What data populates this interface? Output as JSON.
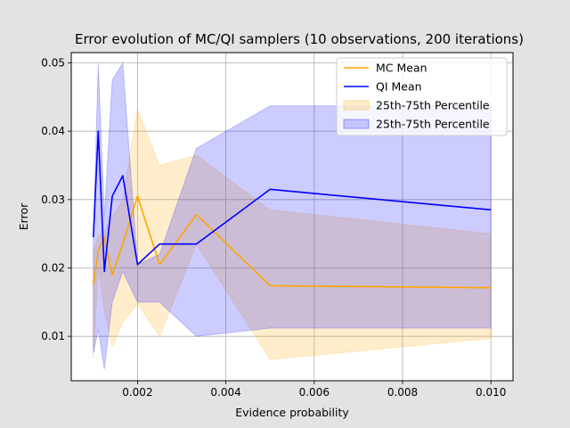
{
  "chart_data": {
    "type": "line",
    "title": "Error evolution of MC/QI samplers (10 observations, 200 iterations)",
    "xlabel": "Evidence probability",
    "ylabel": "Error",
    "xlim": [
      0.0005,
      0.0105
    ],
    "ylim": [
      0.0035,
      0.0515
    ],
    "xticks": [
      0.002,
      0.004,
      0.006,
      0.008,
      0.01
    ],
    "xtick_labels": [
      "0.002",
      "0.004",
      "0.006",
      "0.008",
      "0.010"
    ],
    "yticks": [
      0.01,
      0.02,
      0.03,
      0.04,
      0.05
    ],
    "ytick_labels": [
      "0.01",
      "0.02",
      "0.03",
      "0.04",
      "0.05"
    ],
    "grid": true,
    "legend_position": "top-right",
    "x": [
      0.001,
      0.0011111,
      0.00125,
      0.0014286,
      0.0016667,
      0.002,
      0.0025,
      0.0033333,
      0.005,
      0.01
    ],
    "series": [
      {
        "name": "MC Mean",
        "color": "#ffa500",
        "values": [
          0.0175,
          0.0225,
          0.0245,
          0.019,
          0.0235,
          0.0305,
          0.0205,
          0.0278,
          0.0174,
          0.0171
        ]
      },
      {
        "name": "QI Mean",
        "color": "#0000ff",
        "values": [
          0.0245,
          0.04,
          0.0195,
          0.0305,
          0.0335,
          0.0205,
          0.0235,
          0.0235,
          0.0315,
          0.0285
        ]
      }
    ],
    "bands": [
      {
        "name": "25th-75th Percentile",
        "color": "#ffa500",
        "opacity": 0.2,
        "lower": [
          0.0068,
          0.02,
          0.0138,
          0.0085,
          0.012,
          0.0148,
          0.01,
          0.0235,
          0.0066,
          0.0097
        ],
        "upper": [
          0.0225,
          0.0245,
          0.0255,
          0.0275,
          0.03,
          0.0432,
          0.035,
          0.0365,
          0.0285,
          0.025
        ]
      },
      {
        "name": "25th-75th Percentile",
        "color": "#0000ff",
        "opacity": 0.2,
        "lower": [
          0.0075,
          0.011,
          0.0052,
          0.015,
          0.0195,
          0.015,
          0.015,
          0.01,
          0.0112,
          0.0112
        ],
        "upper": [
          0.0245,
          0.05,
          0.0275,
          0.0475,
          0.05,
          0.0205,
          0.022,
          0.0375,
          0.0437,
          0.0437
        ]
      }
    ]
  }
}
